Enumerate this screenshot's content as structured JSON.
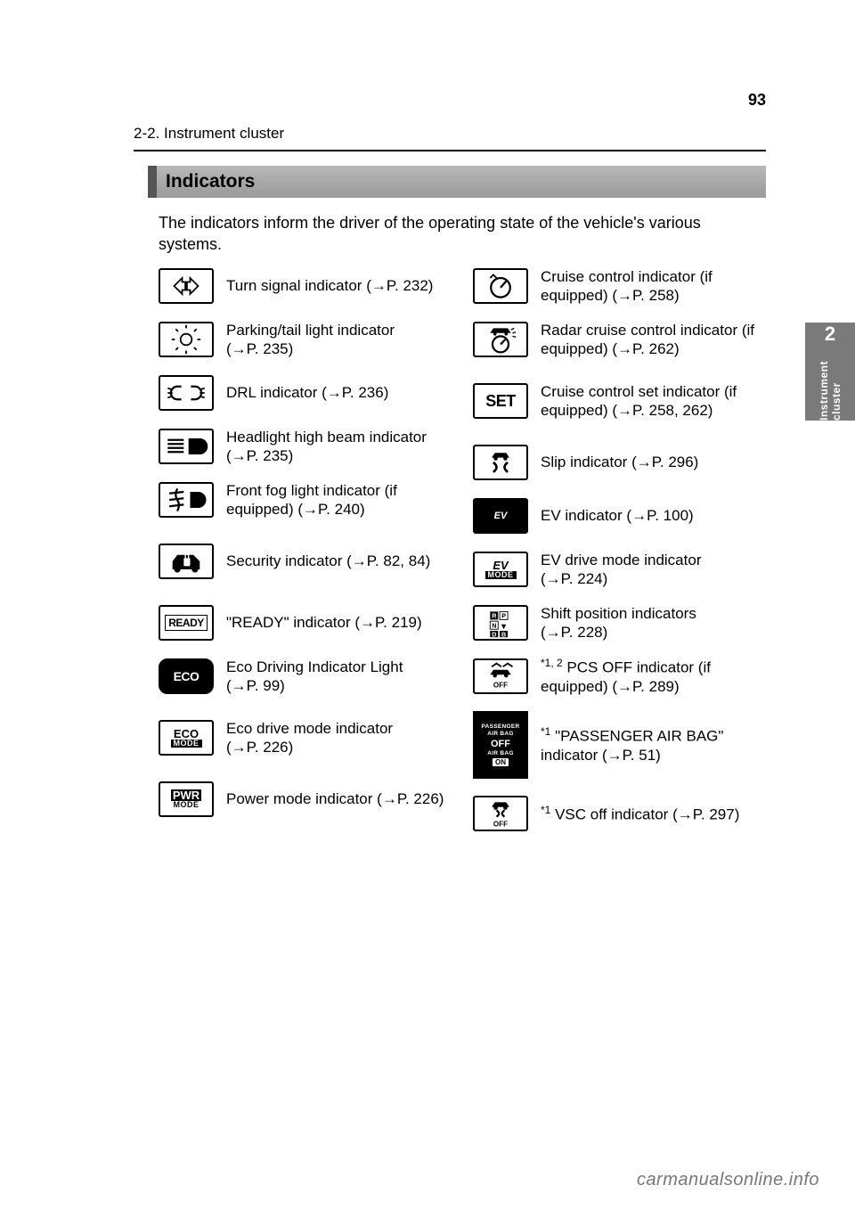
{
  "page_number": "93",
  "breadcrumb": "2-2. Instrument cluster",
  "section_title": "Indicators",
  "intro_text": "The indicators inform the driver of the operating state of the vehicle's various systems.",
  "side_tab": {
    "number": "2",
    "label": "Instrument cluster"
  },
  "watermark": "carmanualsonline.info",
  "left_column": [
    {
      "icon": "turn-signal",
      "label": "Turn signal indicator",
      "page": "→P. 232"
    },
    {
      "icon": "parking-tail",
      "label": "Parking/tail light indicator",
      "page": "→P. 235"
    },
    {
      "icon": "drl",
      "label": "DRL indicator",
      "page": "→P. 236"
    },
    {
      "icon": "high-beam",
      "label": "Headlight high beam indicator",
      "page": "→P. 235"
    },
    {
      "icon": "fog",
      "label": "Front fog light indicator (if equipped)",
      "page": "→P. 240"
    },
    {
      "icon": "security",
      "label": "Security indicator",
      "page": "→P. 82, 84",
      "tall": true
    },
    {
      "icon": "ready",
      "label": "\"READY\" indicator",
      "page": "→P. 219"
    },
    {
      "icon": "eco-drive",
      "label": "Eco Driving Indicator Light",
      "page": "→P. 99"
    },
    {
      "icon": "eco-mode",
      "label": "Eco drive mode indicator",
      "page": "→P. 226",
      "tall": true
    },
    {
      "icon": "pwr-mode",
      "label": "Power mode indicator",
      "page": "→P. 226"
    }
  ],
  "right_column": [
    {
      "icon": "cruise",
      "label": "Cruise control indicator (if equipped)",
      "page": "→P. 258"
    },
    {
      "icon": "radar-cruise",
      "label": "Radar cruise control indicator (if equipped)",
      "page": "→P. 262"
    },
    {
      "icon": "set",
      "label": "Cruise control set indicator (if equipped)",
      "page": "→P. 258, 262",
      "tall": true
    },
    {
      "icon": "slip",
      "label": "Slip indicator",
      "page": "→P. 296"
    },
    {
      "icon": "ev",
      "label": "EV indicator",
      "page": "→P. 100"
    },
    {
      "icon": "ev-mode",
      "label": "EV drive mode indicator",
      "page": "→P. 224"
    },
    {
      "icon": "shift",
      "label": "Shift position indicators",
      "page": "→P. 228"
    },
    {
      "icon": "pcs-off",
      "sup": "*1, 2",
      "label": "PCS OFF indicator (if equipped)",
      "page": "→P. 289"
    },
    {
      "icon": "airbag",
      "sup": "*1",
      "label": "\"PASSENGER AIR BAG\" indicator",
      "page": "→P. 51",
      "xtall": true
    },
    {
      "icon": "vsc-off",
      "sup": "*1",
      "label": "VSC off indicator",
      "page": "→P. 297"
    }
  ]
}
